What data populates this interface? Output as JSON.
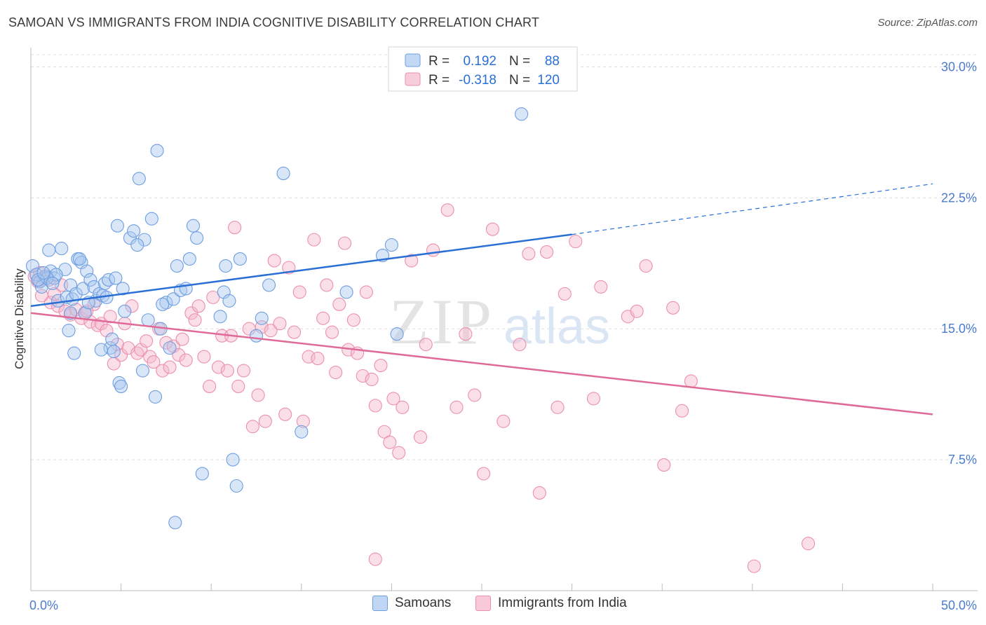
{
  "header": {
    "title": "SAMOAN VS IMMIGRANTS FROM INDIA COGNITIVE DISABILITY CORRELATION CHART",
    "source": "Source: ZipAtlas.com"
  },
  "watermark": {
    "zip": "ZIP",
    "atlas": "atlas"
  },
  "legend": {
    "r_label": "R =",
    "n_label": "N =",
    "samoans": {
      "r": "0.192",
      "n": "88"
    },
    "india": {
      "r": "-0.318",
      "n": "120"
    }
  },
  "bottom_legend": {
    "samoans": "Samoans",
    "india": "Immigrants from India"
  },
  "colors": {
    "samoans_fill": "#a9c8f0",
    "samoans_stroke": "#6d9ee0",
    "samoans_line": "#2a6fd6",
    "india_fill": "#f5b8cc",
    "india_stroke": "#ec8fae",
    "india_line": "#e06a97",
    "tick_text": "#4a7bd0",
    "grid": "#dddddd"
  },
  "chart_data": {
    "type": "scatter",
    "title": "SAMOAN VS IMMIGRANTS FROM INDIA COGNITIVE DISABILITY CORRELATION CHART",
    "xlabel": "",
    "ylabel": "Cognitive Disability",
    "xlim": [
      0,
      50
    ],
    "ylim": [
      0,
      30.7
    ],
    "x_tick_labels": [
      "0.0%",
      "50.0%"
    ],
    "y_ticks": [
      7.5,
      15.0,
      22.5,
      30.0
    ],
    "y_tick_labels": [
      "7.5%",
      "15.0%",
      "22.5%",
      "30.0%"
    ],
    "grid": "horizontal dashed",
    "legend_position": "top-center",
    "series": [
      {
        "name": "Samoans",
        "r": 0.192,
        "n": 88,
        "trend": {
          "x0": 0,
          "y0": 16.3,
          "x1": 30,
          "y1": 20.4,
          "dashed_to_x": 50,
          "dashed_to_y": 23.3
        },
        "points": [
          [
            0.1,
            18.6
          ],
          [
            0.3,
            18.1
          ],
          [
            0.5,
            17.7
          ],
          [
            0.6,
            17.4
          ],
          [
            0.8,
            18.0
          ],
          [
            1.0,
            19.5
          ],
          [
            1.1,
            18.3
          ],
          [
            1.3,
            17.9
          ],
          [
            1.5,
            16.6
          ],
          [
            1.7,
            19.6
          ],
          [
            1.9,
            18.4
          ],
          [
            2.0,
            16.8
          ],
          [
            2.1,
            14.9
          ],
          [
            2.2,
            17.5
          ],
          [
            2.3,
            16.7
          ],
          [
            2.4,
            13.6
          ],
          [
            2.5,
            17.0
          ],
          [
            2.6,
            19.0
          ],
          [
            2.8,
            18.8
          ],
          [
            2.9,
            17.3
          ],
          [
            3.0,
            15.9
          ],
          [
            3.1,
            18.3
          ],
          [
            3.3,
            17.8
          ],
          [
            3.5,
            17.4
          ],
          [
            3.6,
            16.6
          ],
          [
            3.8,
            17.0
          ],
          [
            4.0,
            16.9
          ],
          [
            4.1,
            17.6
          ],
          [
            4.2,
            16.8
          ],
          [
            4.3,
            17.8
          ],
          [
            4.4,
            13.9
          ],
          [
            4.5,
            14.4
          ],
          [
            4.6,
            13.7
          ],
          [
            4.8,
            20.9
          ],
          [
            4.9,
            11.9
          ],
          [
            5.0,
            11.7
          ],
          [
            5.1,
            17.3
          ],
          [
            5.2,
            16.0
          ],
          [
            5.5,
            20.2
          ],
          [
            5.7,
            20.6
          ],
          [
            6.0,
            23.6
          ],
          [
            6.2,
            12.6
          ],
          [
            6.5,
            15.5
          ],
          [
            6.7,
            21.3
          ],
          [
            6.9,
            11.1
          ],
          [
            7.0,
            25.2
          ],
          [
            7.2,
            15.0
          ],
          [
            7.5,
            16.5
          ],
          [
            7.7,
            13.9
          ],
          [
            7.9,
            16.7
          ],
          [
            8.1,
            18.6
          ],
          [
            8.3,
            17.2
          ],
          [
            8.6,
            17.3
          ],
          [
            8.8,
            19.0
          ],
          [
            9.0,
            20.9
          ],
          [
            9.2,
            20.2
          ],
          [
            9.5,
            6.7
          ],
          [
            10.5,
            15.7
          ],
          [
            10.7,
            17.1
          ],
          [
            10.8,
            18.6
          ],
          [
            11.0,
            16.6
          ],
          [
            11.2,
            7.5
          ],
          [
            11.4,
            6.0
          ],
          [
            11.6,
            19.0
          ],
          [
            12.5,
            14.6
          ],
          [
            12.8,
            15.6
          ],
          [
            13.2,
            17.5
          ],
          [
            14.0,
            23.9
          ],
          [
            15.0,
            9.1
          ],
          [
            17.5,
            17.1
          ],
          [
            19.5,
            19.2
          ],
          [
            20.0,
            19.8
          ],
          [
            20.3,
            14.7
          ],
          [
            27.2,
            27.3
          ],
          [
            2.7,
            19.0
          ],
          [
            3.2,
            16.5
          ],
          [
            1.4,
            18.1
          ],
          [
            0.9,
            17.9
          ],
          [
            4.7,
            17.9
          ],
          [
            6.3,
            20.1
          ],
          [
            7.3,
            16.4
          ],
          [
            5.9,
            19.8
          ],
          [
            8.0,
            3.9
          ],
          [
            3.9,
            13.8
          ],
          [
            1.2,
            17.6
          ],
          [
            0.4,
            17.8
          ],
          [
            0.7,
            18.2
          ],
          [
            2.2,
            15.9
          ]
        ]
      },
      {
        "name": "Immigrants from India",
        "r": -0.318,
        "n": 120,
        "trend": {
          "x0": 0,
          "y0": 15.9,
          "x1": 50,
          "y1": 10.1
        },
        "points": [
          [
            0.2,
            18.0
          ],
          [
            0.4,
            17.7
          ],
          [
            0.5,
            18.2
          ],
          [
            0.7,
            17.9
          ],
          [
            0.9,
            18.0
          ],
          [
            1.1,
            16.5
          ],
          [
            1.3,
            17.0
          ],
          [
            1.5,
            16.3
          ],
          [
            1.7,
            17.5
          ],
          [
            1.9,
            16.0
          ],
          [
            2.2,
            15.8
          ],
          [
            2.5,
            16.1
          ],
          [
            2.8,
            15.6
          ],
          [
            3.0,
            15.9
          ],
          [
            3.3,
            15.4
          ],
          [
            3.5,
            16.4
          ],
          [
            3.7,
            15.2
          ],
          [
            3.9,
            15.3
          ],
          [
            4.2,
            14.9
          ],
          [
            4.4,
            15.7
          ],
          [
            4.6,
            13.0
          ],
          [
            4.8,
            14.1
          ],
          [
            5.0,
            13.5
          ],
          [
            5.2,
            15.3
          ],
          [
            5.4,
            13.9
          ],
          [
            5.6,
            16.3
          ],
          [
            5.9,
            13.6
          ],
          [
            6.1,
            13.8
          ],
          [
            6.4,
            14.3
          ],
          [
            6.6,
            13.4
          ],
          [
            6.8,
            13.1
          ],
          [
            7.1,
            15.0
          ],
          [
            7.3,
            12.6
          ],
          [
            7.5,
            14.2
          ],
          [
            7.7,
            12.8
          ],
          [
            7.9,
            14.0
          ],
          [
            8.2,
            13.5
          ],
          [
            8.4,
            14.4
          ],
          [
            8.6,
            13.2
          ],
          [
            8.9,
            15.9
          ],
          [
            9.1,
            15.5
          ],
          [
            9.3,
            16.3
          ],
          [
            9.6,
            13.4
          ],
          [
            9.9,
            11.7
          ],
          [
            10.1,
            16.8
          ],
          [
            10.4,
            12.8
          ],
          [
            10.6,
            14.6
          ],
          [
            10.9,
            12.6
          ],
          [
            11.1,
            14.6
          ],
          [
            11.3,
            20.8
          ],
          [
            11.5,
            11.7
          ],
          [
            11.8,
            12.6
          ],
          [
            12.1,
            15.0
          ],
          [
            12.3,
            9.4
          ],
          [
            12.6,
            11.2
          ],
          [
            12.8,
            15.1
          ],
          [
            13.0,
            9.7
          ],
          [
            13.3,
            14.9
          ],
          [
            13.5,
            18.9
          ],
          [
            13.8,
            15.3
          ],
          [
            14.1,
            10.1
          ],
          [
            14.3,
            18.5
          ],
          [
            14.6,
            14.8
          ],
          [
            14.9,
            17.1
          ],
          [
            15.1,
            9.7
          ],
          [
            15.4,
            13.4
          ],
          [
            15.7,
            20.1
          ],
          [
            15.9,
            13.3
          ],
          [
            16.2,
            15.6
          ],
          [
            16.4,
            17.5
          ],
          [
            16.7,
            14.8
          ],
          [
            16.9,
            12.5
          ],
          [
            17.1,
            16.4
          ],
          [
            17.4,
            19.9
          ],
          [
            17.6,
            13.8
          ],
          [
            17.9,
            15.5
          ],
          [
            18.1,
            13.6
          ],
          [
            18.4,
            12.3
          ],
          [
            18.6,
            17.1
          ],
          [
            18.9,
            12.1
          ],
          [
            19.1,
            10.6
          ],
          [
            19.4,
            12.9
          ],
          [
            19.6,
            9.1
          ],
          [
            19.9,
            8.5
          ],
          [
            20.1,
            11.0
          ],
          [
            20.4,
            7.9
          ],
          [
            20.6,
            10.5
          ],
          [
            21.1,
            18.9
          ],
          [
            21.6,
            8.8
          ],
          [
            21.9,
            14.1
          ],
          [
            22.3,
            19.5
          ],
          [
            23.1,
            21.8
          ],
          [
            23.6,
            10.5
          ],
          [
            24.1,
            14.7
          ],
          [
            24.6,
            11.2
          ],
          [
            25.1,
            6.7
          ],
          [
            25.6,
            20.7
          ],
          [
            26.2,
            9.7
          ],
          [
            27.1,
            14.1
          ],
          [
            27.6,
            19.3
          ],
          [
            28.2,
            5.6
          ],
          [
            28.6,
            19.4
          ],
          [
            29.2,
            10.5
          ],
          [
            29.6,
            17.0
          ],
          [
            30.2,
            20.0
          ],
          [
            31.2,
            11.0
          ],
          [
            31.6,
            17.4
          ],
          [
            33.1,
            15.7
          ],
          [
            33.6,
            16.0
          ],
          [
            34.1,
            18.6
          ],
          [
            35.1,
            7.2
          ],
          [
            35.6,
            16.2
          ],
          [
            36.1,
            10.3
          ],
          [
            36.6,
            12.0
          ],
          [
            19.1,
            1.8
          ],
          [
            40.1,
            1.4
          ],
          [
            43.1,
            2.7
          ],
          [
            0.6,
            16.9
          ],
          [
            1.0,
            17.8
          ],
          [
            3.1,
            16.0
          ]
        ]
      }
    ]
  }
}
